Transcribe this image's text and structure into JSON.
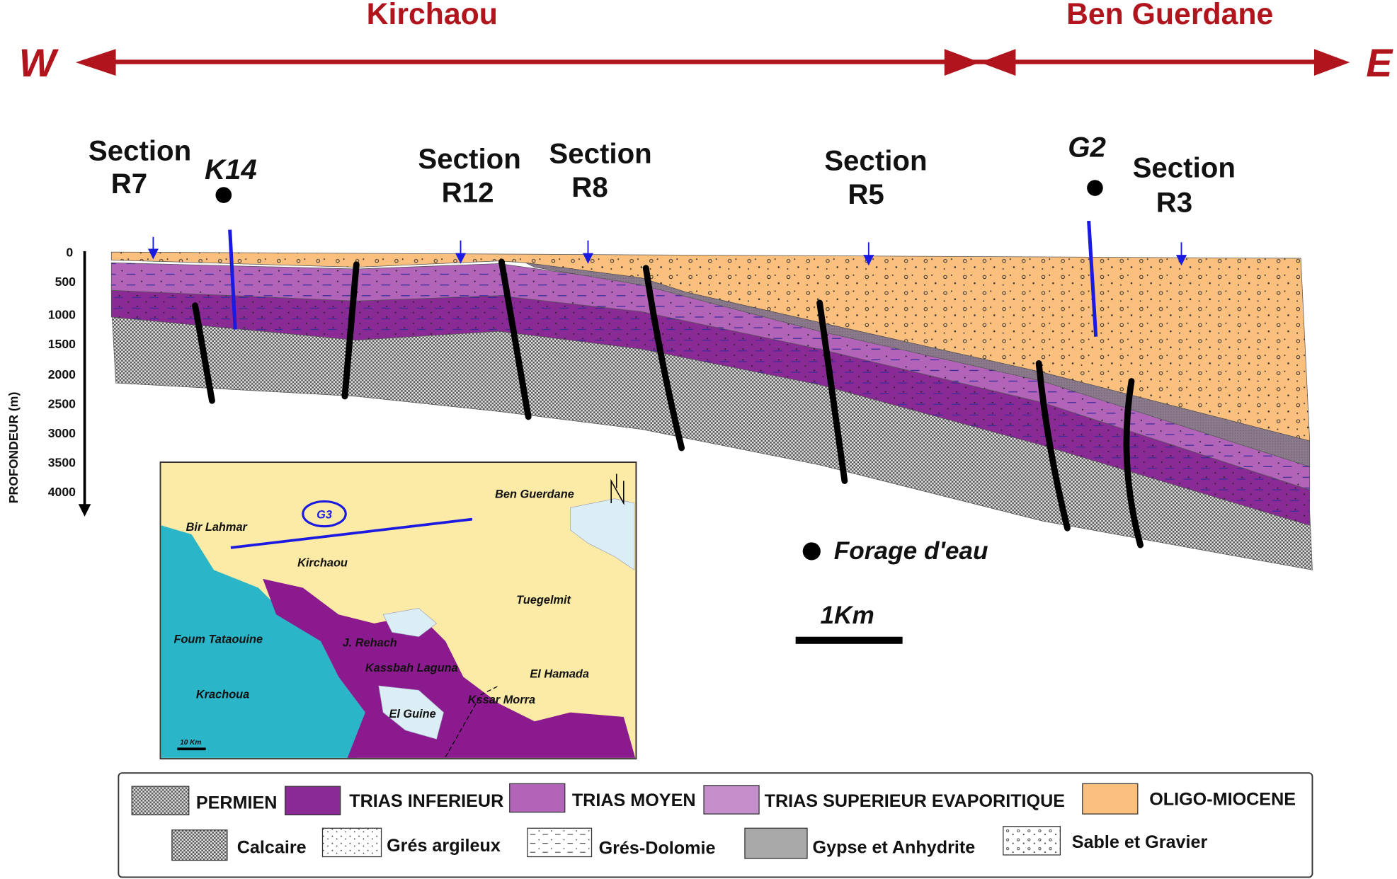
{
  "header": {
    "west": "W",
    "east": "E",
    "left_region": "Kirchaou",
    "right_region": "Ben Guerdane"
  },
  "sections": [
    [
      "Section",
      "R7"
    ],
    [
      "Section",
      "R12"
    ],
    [
      "Section",
      "R8"
    ],
    [
      "Section",
      "R5"
    ],
    [
      "Section",
      "R3"
    ]
  ],
  "wells": [
    "K14",
    "G2"
  ],
  "depth_axis": {
    "title": "PROFONDEUR (m)",
    "ticks": [
      0,
      500,
      1000,
      1500,
      2000,
      2500,
      3000,
      3500,
      4000
    ]
  },
  "key": {
    "well": "Forage d'eau",
    "scale": "1Km"
  },
  "map": {
    "well": "G3",
    "scale": "10 Km",
    "places": [
      "Ben Guerdane",
      "Bir Lahmar",
      "Kirchaou",
      "Tuegelmit",
      "Foum Tataouine",
      "J. Rehach",
      "Kassbah Laguna",
      "El Hamada",
      "Krachoua",
      "Kssar Morra",
      "El Guine"
    ]
  },
  "legend": {
    "formations": [
      "PERMIEN",
      "TRIAS INFERIEUR",
      "TRIAS MOYEN",
      "TRIAS SUPERIEUR EVAPORITIQUE",
      "OLIGO-MIOCENE"
    ],
    "lithologies": [
      "Calcaire",
      "Grés argileux",
      "Grés-Dolomie",
      "Gypse et Anhydrite",
      "Sable et Gravier"
    ]
  }
}
